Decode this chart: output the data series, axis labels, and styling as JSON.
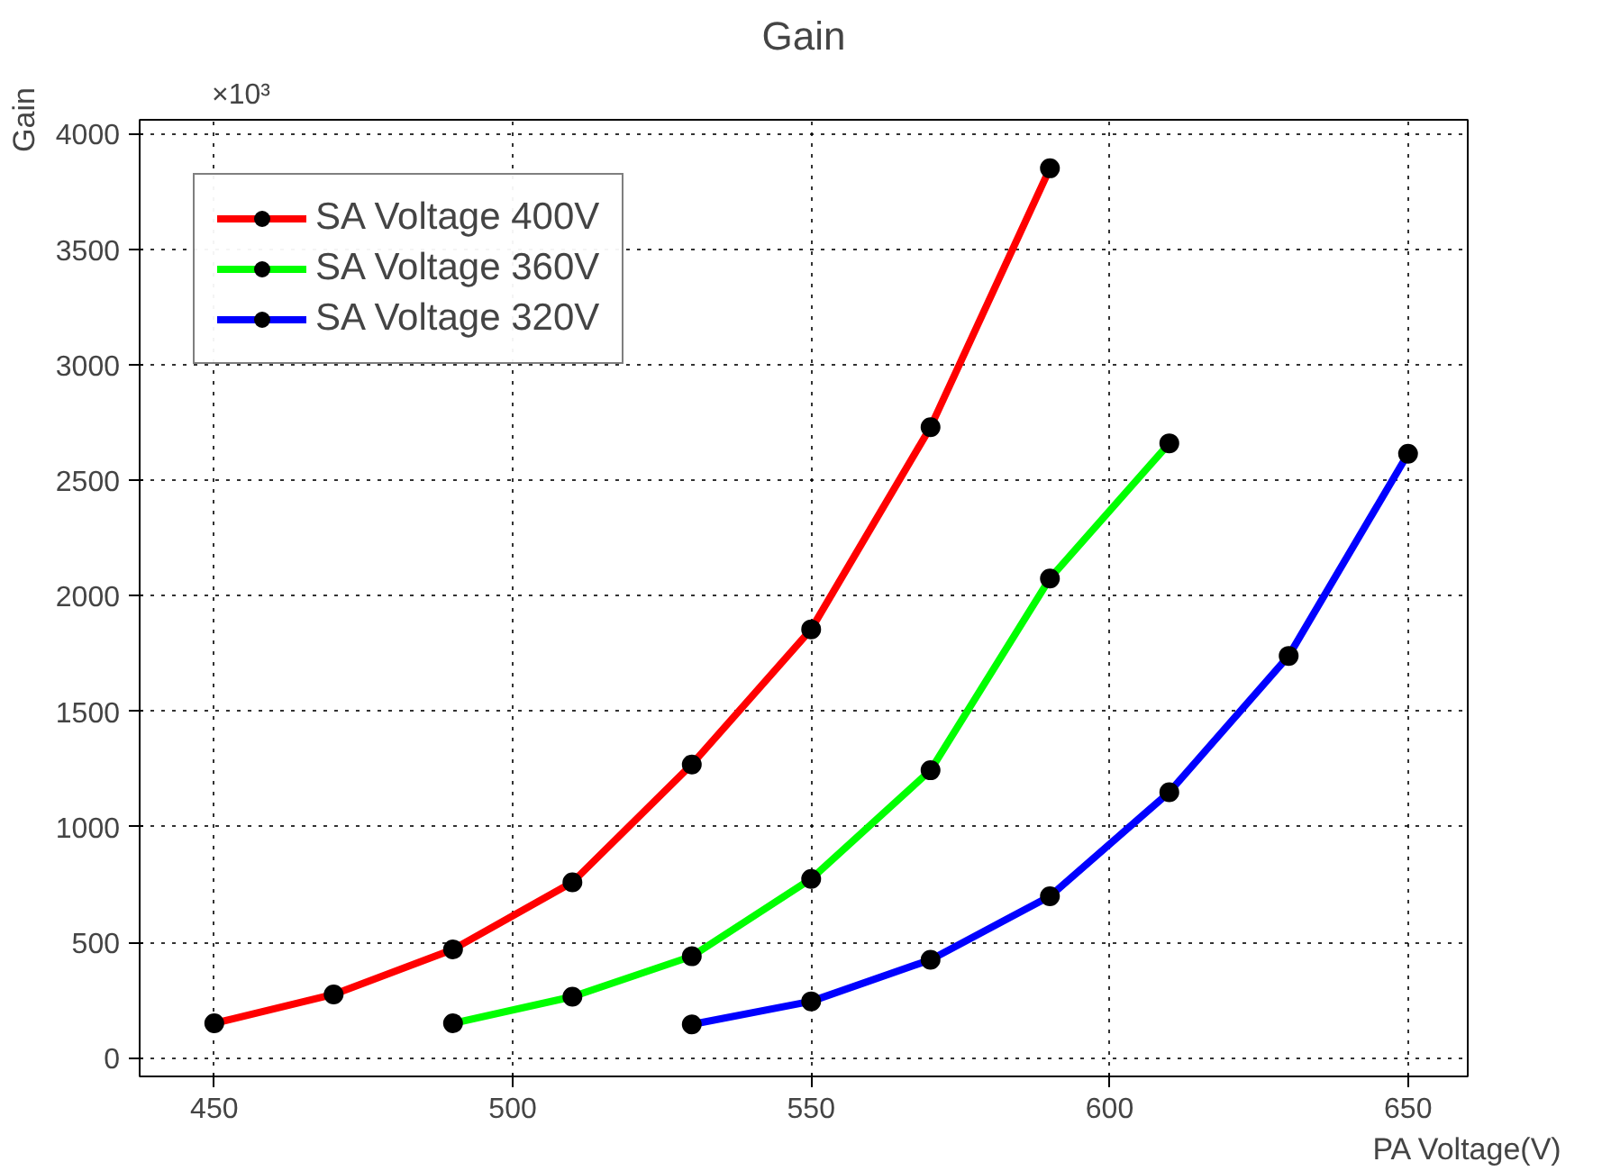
{
  "chart_data": {
    "type": "line",
    "title": "Gain",
    "xlabel": "PA Voltage(V)",
    "ylabel": "Gain",
    "annotations": [
      "×10³"
    ],
    "series": [
      {
        "name": "SA Voltage 400V",
        "color": "#ff0000",
        "x": [
          450,
          470,
          490,
          510,
          530,
          550,
          570,
          590
        ],
        "values": [
          150,
          275,
          470,
          760,
          1270,
          1855,
          2730,
          3850
        ]
      },
      {
        "name": "SA Voltage 360V",
        "color": "#00ff00",
        "x": [
          490,
          510,
          530,
          550,
          570,
          590,
          610
        ],
        "values": [
          150,
          265,
          440,
          775,
          1245,
          2075,
          2660
        ]
      },
      {
        "name": "SA Voltage 320V",
        "color": "#0000ff",
        "x": [
          530,
          550,
          570,
          590,
          610,
          630,
          650
        ],
        "values": [
          145,
          245,
          425,
          700,
          1150,
          1740,
          2615
        ]
      }
    ],
    "xlim": [
      437.5,
      660
    ],
    "ylim": [
      -80,
      4060
    ],
    "xticks": [
      450,
      500,
      550,
      600,
      650
    ],
    "yticks": [
      0,
      500,
      1000,
      1500,
      2000,
      2500,
      3000,
      3500,
      4000
    ],
    "grid": true,
    "legend": "top left",
    "marker": "circle",
    "line_style": "solid"
  }
}
